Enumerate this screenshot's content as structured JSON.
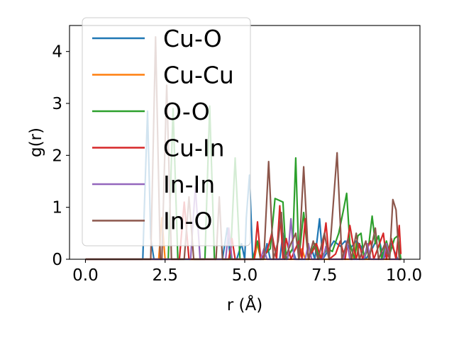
{
  "chart_data": {
    "type": "line",
    "xlabel": "r (Å)",
    "ylabel": "g(r)",
    "xlim": [
      -0.5,
      10.5
    ],
    "ylim": [
      0,
      4.5
    ],
    "xticks": [
      0.0,
      2.5,
      5.0,
      7.5,
      10.0
    ],
    "xtick_labels": [
      "0.0",
      "2.5",
      "5.0",
      "7.5",
      "10.0"
    ],
    "yticks": [
      0,
      1,
      2,
      3,
      4
    ],
    "ytick_labels": [
      "0",
      "1",
      "2",
      "3",
      "4"
    ],
    "grid": false,
    "legend": "upper-left",
    "series": [
      {
        "name": "Cu-O",
        "color": "#1f77b4",
        "points": [
          [
            0,
            0
          ],
          [
            1.8,
            0
          ],
          [
            1.85,
            1.0
          ],
          [
            1.95,
            2.85
          ],
          [
            2.05,
            0.4
          ],
          [
            2.15,
            0
          ],
          [
            4.3,
            0
          ],
          [
            4.45,
            0.6
          ],
          [
            4.55,
            0
          ],
          [
            4.75,
            0
          ],
          [
            4.9,
            0.3
          ],
          [
            5.0,
            0
          ],
          [
            5.05,
            0.8
          ],
          [
            5.15,
            1.62
          ],
          [
            5.25,
            0
          ],
          [
            5.6,
            0
          ],
          [
            5.7,
            0.3
          ],
          [
            5.8,
            0
          ],
          [
            6.1,
            0
          ],
          [
            6.2,
            0.5
          ],
          [
            6.3,
            0
          ],
          [
            6.5,
            0.2
          ],
          [
            6.6,
            0
          ],
          [
            7.0,
            0
          ],
          [
            7.1,
            0.2
          ],
          [
            7.2,
            0
          ],
          [
            7.35,
            0.78
          ],
          [
            7.45,
            0
          ],
          [
            7.65,
            0.2
          ],
          [
            7.8,
            0.35
          ],
          [
            8.0,
            0.25
          ],
          [
            8.15,
            0.35
          ],
          [
            8.3,
            0.2
          ],
          [
            8.5,
            0.35
          ],
          [
            8.65,
            0.25
          ],
          [
            8.8,
            0
          ],
          [
            9.0,
            0.2
          ],
          [
            9.2,
            0.45
          ],
          [
            9.35,
            0
          ],
          [
            9.6,
            0.3
          ],
          [
            9.8,
            0
          ],
          [
            9.9,
            0
          ]
        ]
      },
      {
        "name": "Cu-Cu",
        "color": "#ff7f0e",
        "points": [
          [
            0,
            0
          ],
          [
            2.3,
            0
          ],
          [
            2.4,
            0.8
          ],
          [
            2.5,
            0
          ],
          [
            5.3,
            0
          ],
          [
            5.4,
            0.3
          ],
          [
            5.5,
            0
          ],
          [
            6.7,
            0
          ],
          [
            6.8,
            0.2
          ],
          [
            6.9,
            0
          ],
          [
            8.4,
            0
          ],
          [
            8.5,
            0.3
          ],
          [
            8.6,
            0
          ],
          [
            9.9,
            0
          ]
        ]
      },
      {
        "name": "O-O",
        "color": "#2ca02c",
        "points": [
          [
            0,
            0
          ],
          [
            2.6,
            0
          ],
          [
            2.75,
            2.9
          ],
          [
            2.9,
            0
          ],
          [
            3.75,
            0
          ],
          [
            3.9,
            2.95
          ],
          [
            4.05,
            0
          ],
          [
            4.55,
            0
          ],
          [
            4.7,
            1.95
          ],
          [
            4.85,
            0
          ],
          [
            5.25,
            0
          ],
          [
            5.4,
            0.35
          ],
          [
            5.5,
            0
          ],
          [
            5.8,
            0.2
          ],
          [
            5.95,
            1.17
          ],
          [
            6.2,
            1.1
          ],
          [
            6.3,
            0
          ],
          [
            6.5,
            0.2
          ],
          [
            6.6,
            1.95
          ],
          [
            6.7,
            0
          ],
          [
            6.85,
            0.9
          ],
          [
            7.0,
            0
          ],
          [
            7.2,
            0.3
          ],
          [
            7.35,
            0
          ],
          [
            7.6,
            0.2
          ],
          [
            7.75,
            0.15
          ],
          [
            7.95,
            0.5
          ],
          [
            8.1,
            0.95
          ],
          [
            8.2,
            1.27
          ],
          [
            8.3,
            0.3
          ],
          [
            8.45,
            0
          ],
          [
            8.55,
            0.45
          ],
          [
            8.65,
            0.5
          ],
          [
            8.75,
            0
          ],
          [
            8.9,
            0.3
          ],
          [
            9.0,
            0.83
          ],
          [
            9.1,
            0.3
          ],
          [
            9.2,
            0.45
          ],
          [
            9.3,
            0
          ],
          [
            9.45,
            0.35
          ],
          [
            9.55,
            0.1
          ],
          [
            9.7,
            0.4
          ],
          [
            9.8,
            0.45
          ],
          [
            9.9,
            0
          ]
        ]
      },
      {
        "name": "Cu-In",
        "color": "#d62728",
        "points": [
          [
            0,
            0
          ],
          [
            2.95,
            0
          ],
          [
            3.1,
            1.1
          ],
          [
            3.25,
            0
          ],
          [
            4.5,
            0
          ],
          [
            4.6,
            0.4
          ],
          [
            4.7,
            0
          ],
          [
            5.3,
            0
          ],
          [
            5.4,
            0.72
          ],
          [
            5.5,
            0
          ],
          [
            5.7,
            0.15
          ],
          [
            5.85,
            0.5
          ],
          [
            6.0,
            0
          ],
          [
            6.1,
            1.03
          ],
          [
            6.2,
            0
          ],
          [
            6.3,
            0.4
          ],
          [
            6.45,
            0
          ],
          [
            6.7,
            0.35
          ],
          [
            6.8,
            0
          ],
          [
            6.9,
            0.78
          ],
          [
            7.0,
            0
          ],
          [
            7.25,
            0.3
          ],
          [
            7.4,
            0
          ],
          [
            7.55,
            0.7
          ],
          [
            7.65,
            0
          ],
          [
            7.85,
            0.1
          ],
          [
            8.0,
            0.35
          ],
          [
            8.15,
            0
          ],
          [
            8.3,
            0.65
          ],
          [
            8.4,
            0.3
          ],
          [
            8.5,
            0
          ],
          [
            8.6,
            0.3
          ],
          [
            8.7,
            0
          ],
          [
            8.95,
            0.35
          ],
          [
            9.05,
            0
          ],
          [
            9.2,
            0.25
          ],
          [
            9.35,
            0.5
          ],
          [
            9.45,
            0
          ],
          [
            9.6,
            0.4
          ],
          [
            9.75,
            0
          ],
          [
            9.85,
            0.65
          ],
          [
            9.9,
            0.1
          ]
        ]
      },
      {
        "name": "In-In",
        "color": "#9467bd",
        "points": [
          [
            0,
            0
          ],
          [
            3.3,
            0
          ],
          [
            3.45,
            1.4
          ],
          [
            3.6,
            0
          ],
          [
            4.4,
            0
          ],
          [
            4.5,
            0.6
          ],
          [
            4.6,
            0
          ],
          [
            5.5,
            0
          ],
          [
            5.6,
            0.2
          ],
          [
            5.7,
            0
          ],
          [
            6.35,
            0
          ],
          [
            6.45,
            0.78
          ],
          [
            6.55,
            0
          ],
          [
            6.9,
            0
          ],
          [
            7.0,
            0.3
          ],
          [
            7.1,
            0
          ],
          [
            7.45,
            0
          ],
          [
            7.55,
            0.25
          ],
          [
            7.65,
            0
          ],
          [
            8.1,
            0
          ],
          [
            8.2,
            0.35
          ],
          [
            8.3,
            0
          ],
          [
            8.75,
            0
          ],
          [
            8.85,
            0.3
          ],
          [
            8.95,
            0
          ],
          [
            9.35,
            0
          ],
          [
            9.45,
            0.3
          ],
          [
            9.55,
            0
          ],
          [
            9.9,
            0
          ]
        ]
      },
      {
        "name": "In-O",
        "color": "#8c564b",
        "points": [
          [
            0,
            0
          ],
          [
            2.05,
            0
          ],
          [
            2.2,
            4.28
          ],
          [
            2.35,
            0
          ],
          [
            2.4,
            0
          ],
          [
            2.55,
            3.35
          ],
          [
            2.7,
            0
          ],
          [
            3.1,
            0
          ],
          [
            3.25,
            1.2
          ],
          [
            3.4,
            0
          ],
          [
            4.1,
            0
          ],
          [
            4.2,
            1.2
          ],
          [
            4.3,
            0
          ],
          [
            5.6,
            0
          ],
          [
            5.75,
            1.88
          ],
          [
            5.9,
            0
          ],
          [
            6.05,
            0.35
          ],
          [
            6.15,
            0.9
          ],
          [
            6.25,
            0
          ],
          [
            6.45,
            0.3
          ],
          [
            6.6,
            0.5
          ],
          [
            6.7,
            0
          ],
          [
            6.85,
            1.78
          ],
          [
            7.0,
            0
          ],
          [
            7.15,
            0.35
          ],
          [
            7.3,
            0
          ],
          [
            7.5,
            0.5
          ],
          [
            7.65,
            0
          ],
          [
            7.9,
            2.05
          ],
          [
            8.05,
            0
          ],
          [
            8.25,
            0.4
          ],
          [
            8.35,
            0
          ],
          [
            8.5,
            0.5
          ],
          [
            8.6,
            0
          ],
          [
            8.8,
            0.35
          ],
          [
            8.9,
            0
          ],
          [
            9.1,
            0.6
          ],
          [
            9.2,
            0
          ],
          [
            9.4,
            0.3
          ],
          [
            9.55,
            0
          ],
          [
            9.65,
            1.15
          ],
          [
            9.75,
            0.95
          ],
          [
            9.85,
            0
          ],
          [
            9.9,
            0
          ]
        ]
      }
    ]
  }
}
